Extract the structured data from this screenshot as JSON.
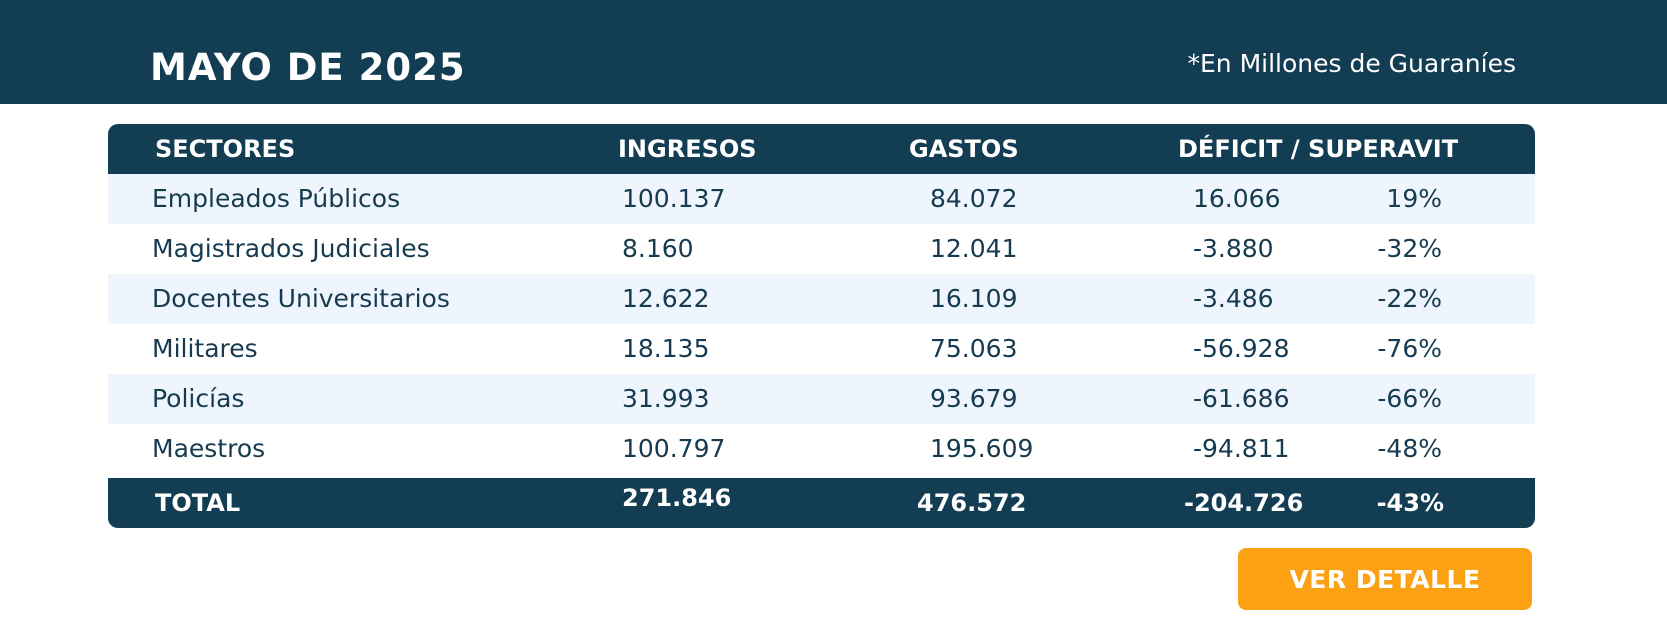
{
  "header": {
    "title": "MAYO DE 2025",
    "note": "*En Millones de Guaraníes"
  },
  "table": {
    "columns": {
      "sector": "SECTORES",
      "ingresos": "INGRESOS",
      "gastos": "GASTOS",
      "deficit": "DÉFICIT / SUPERAVIT"
    },
    "rows": [
      {
        "sector": "Empleados Públicos",
        "ingresos": "100.137",
        "gastos": "84.072",
        "deficit": "16.066",
        "pct": "19%"
      },
      {
        "sector": "Magistrados Judiciales",
        "ingresos": "8.160",
        "gastos": "12.041",
        "deficit": "-3.880",
        "pct": "-32%"
      },
      {
        "sector": "Docentes Universitarios",
        "ingresos": "12.622",
        "gastos": "16.109",
        "deficit": "-3.486",
        "pct": "-22%"
      },
      {
        "sector": "Militares",
        "ingresos": "18.135",
        "gastos": "75.063",
        "deficit": "-56.928",
        "pct": "-76%"
      },
      {
        "sector": "Policías",
        "ingresos": "31.993",
        "gastos": "93.679",
        "deficit": "-61.686",
        "pct": "-66%"
      },
      {
        "sector": "Maestros",
        "ingresos": "100.797",
        "gastos": "195.609",
        "deficit": "-94.811",
        "pct": "-48%"
      }
    ],
    "total": {
      "label": "TOTAL",
      "ingresos": "271.846",
      "gastos": "476.572",
      "deficit": "-204.726",
      "pct": "-43%"
    }
  },
  "actions": {
    "detail_label": "VER DETALLE"
  },
  "colors": {
    "header_bg": "#133d52",
    "row_alt": "#eff5fc",
    "button": "#fda114"
  }
}
